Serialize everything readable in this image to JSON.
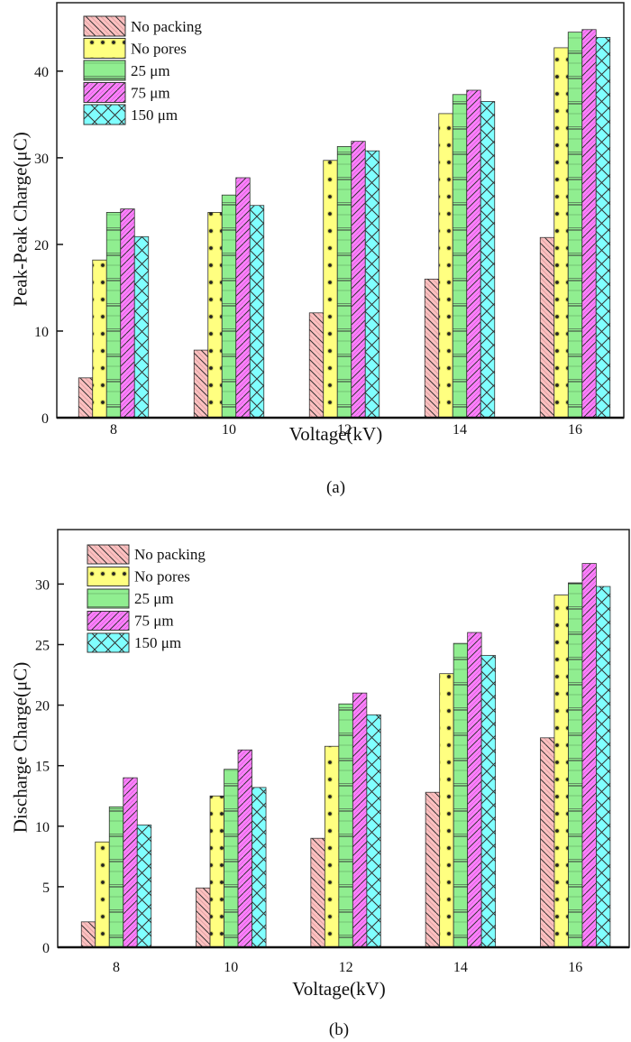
{
  "chart_data": [
    {
      "type": "bar",
      "panel": "(a)",
      "title": "",
      "xlabel": "Voltage(kV)",
      "ylabel": "Peak-Peak Charge(μC)",
      "categories": [
        "8",
        "10",
        "12",
        "14",
        "16"
      ],
      "ylim": [
        0,
        47.9
      ],
      "yticks": [
        0,
        10,
        20,
        30,
        40
      ],
      "grid": false,
      "legend_position": "top-left",
      "series": [
        {
          "name": "No packing",
          "color": "#FFC0C0",
          "pattern": "diagonal-back",
          "values": [
            4.6,
            7.8,
            12.1,
            16.0,
            20.8
          ]
        },
        {
          "name": "No pores",
          "color": "#FFFF80",
          "pattern": "dots",
          "values": [
            18.2,
            23.7,
            29.7,
            35.1,
            42.7
          ]
        },
        {
          "name": "25 μm",
          "color": "#90EE90",
          "pattern": "grid-lines",
          "values": [
            23.7,
            25.7,
            31.3,
            37.3,
            44.5
          ]
        },
        {
          "name": "75 μm",
          "color": "#FF80FF",
          "pattern": "diagonal-forward",
          "values": [
            24.1,
            27.7,
            31.9,
            37.8,
            44.8
          ]
        },
        {
          "name": "150 μm",
          "color": "#80FFFF",
          "pattern": "crosshatch",
          "values": [
            20.9,
            24.5,
            30.8,
            36.5,
            43.9
          ]
        }
      ]
    },
    {
      "type": "bar",
      "panel": "(b)",
      "title": "",
      "xlabel": "Voltage(kV)",
      "ylabel": "Discharge Charge(μC)",
      "categories": [
        "8",
        "10",
        "12",
        "14",
        "16"
      ],
      "ylim": [
        0,
        34.5
      ],
      "yticks": [
        0,
        5,
        10,
        15,
        20,
        25,
        30
      ],
      "grid": false,
      "legend_position": "top-left",
      "series": [
        {
          "name": "No packing",
          "color": "#FFC0C0",
          "pattern": "diagonal-back",
          "values": [
            2.1,
            4.9,
            9.0,
            12.8,
            17.3
          ]
        },
        {
          "name": "No pores",
          "color": "#FFFF80",
          "pattern": "dots",
          "values": [
            8.7,
            12.5,
            16.6,
            22.6,
            29.1
          ]
        },
        {
          "name": "25 μm",
          "color": "#90EE90",
          "pattern": "grid-lines",
          "values": [
            11.6,
            14.7,
            20.1,
            25.1,
            30.1
          ]
        },
        {
          "name": "75 μm",
          "color": "#FF80FF",
          "pattern": "diagonal-forward",
          "values": [
            14.0,
            16.3,
            21.0,
            26.0,
            31.7
          ]
        },
        {
          "name": "150 μm",
          "color": "#80FFFF",
          "pattern": "crosshatch",
          "values": [
            10.1,
            13.2,
            19.2,
            24.1,
            29.8
          ]
        }
      ]
    }
  ]
}
